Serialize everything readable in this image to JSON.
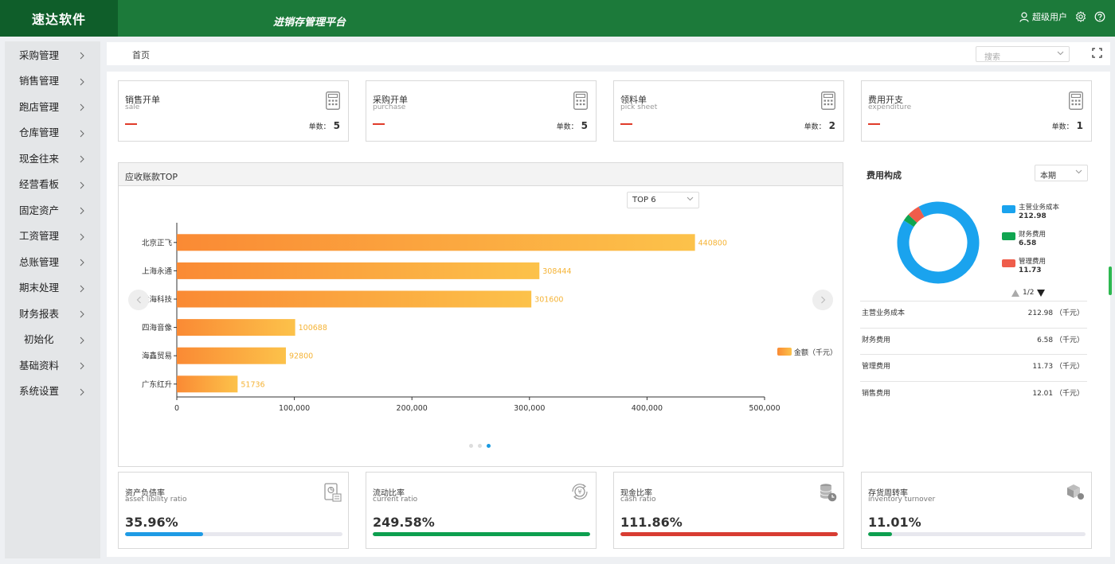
{
  "header": {
    "logo": "速达软件",
    "platform": "进销存管理平台",
    "user": "超级用户",
    "color_primary": "#1c7a3a",
    "color_logo_bg": "#0f5e2a"
  },
  "sidebar": {
    "items": [
      {
        "label": "采购管理"
      },
      {
        "label": "销售管理"
      },
      {
        "label": "跑店管理"
      },
      {
        "label": "仓库管理"
      },
      {
        "label": "现金往来"
      },
      {
        "label": "经营看板"
      },
      {
        "label": "固定资产"
      },
      {
        "label": "工资管理"
      },
      {
        "label": "总账管理"
      },
      {
        "label": "期末处理"
      },
      {
        "label": "财务报表"
      },
      {
        "label": "初始化"
      },
      {
        "label": "基础资料"
      },
      {
        "label": "系统设置"
      }
    ]
  },
  "breadcrumb": {
    "home": "首页"
  },
  "search": {
    "placeholder": "搜索"
  },
  "stat_cards": [
    {
      "title": "销售开单",
      "sub": "sale",
      "count_label": "单数：",
      "count": "5"
    },
    {
      "title": "采购开单",
      "sub": "purchase",
      "count_label": "单数：",
      "count": "5"
    },
    {
      "title": "领料单",
      "sub": "pick sheet",
      "count_label": "单数：",
      "count": "2"
    },
    {
      "title": "费用开支",
      "sub": "expenditure",
      "count_label": "单数：",
      "count": "1"
    }
  ],
  "ar_panel": {
    "title": "应收账款TOP",
    "select": "TOP 6",
    "legend": "金额（千元）"
  },
  "chart_data": {
    "type": "bar",
    "orientation": "horizontal",
    "categories": [
      "北京正飞",
      "上海永通",
      "洪海科技",
      "四海音像",
      "海鑫贸易",
      "广东红升"
    ],
    "values": [
      440800,
      308444,
      301600,
      100688,
      92800,
      51736
    ],
    "value_labels": [
      "440800",
      "308444",
      "301600",
      "100688",
      "92800",
      "51736"
    ],
    "series_name": "金额（千元）",
    "xlim": [
      0,
      500000
    ],
    "x_ticks": [
      "0",
      "100,000",
      "200,000",
      "300,000",
      "400,000",
      "500,000"
    ],
    "bar_color_start": "#fa8a34",
    "bar_color_end": "#fcc24a",
    "label_color": "#f5b335"
  },
  "expense": {
    "title": "费用构成",
    "period": "本期",
    "pager": "1/2",
    "donut": [
      {
        "name": "主营业务成本",
        "value": 212.98,
        "display": "212.98",
        "color": "#1aa3ee"
      },
      {
        "name": "财务费用",
        "value": 6.58,
        "display": "6.58",
        "color": "#10a550"
      },
      {
        "name": "管理费用",
        "value": 11.73,
        "display": "11.73",
        "color": "#ef5d4b"
      }
    ],
    "rows": [
      {
        "name": "主营业务成本",
        "value": "212.98 （千元）"
      },
      {
        "name": "财务费用",
        "value": "6.58 （千元）"
      },
      {
        "name": "管理费用",
        "value": "11.73 （千元）"
      },
      {
        "name": "销售费用",
        "value": "12.01 （千元）"
      }
    ]
  },
  "ratio_cards": [
    {
      "title": "资产负债率",
      "sub": "asset libility ratio",
      "value": "35.96%",
      "fill": 0.3596,
      "color": "#1e9be5",
      "icon": "report-icon"
    },
    {
      "title": "流动比率",
      "sub": "current ratio",
      "value": "249.58%",
      "fill": 1.0,
      "color": "#0d9f4f",
      "icon": "currency-cycle-icon"
    },
    {
      "title": "现金比率",
      "sub": "cash ratio",
      "value": "111.86%",
      "fill": 1.0,
      "color": "#d83c32",
      "icon": "coins-icon"
    },
    {
      "title": "存货周转率",
      "sub": "inventory turnover",
      "value": "11.01%",
      "fill": 0.11,
      "color": "#0d9f4f",
      "icon": "box-icon"
    }
  ]
}
